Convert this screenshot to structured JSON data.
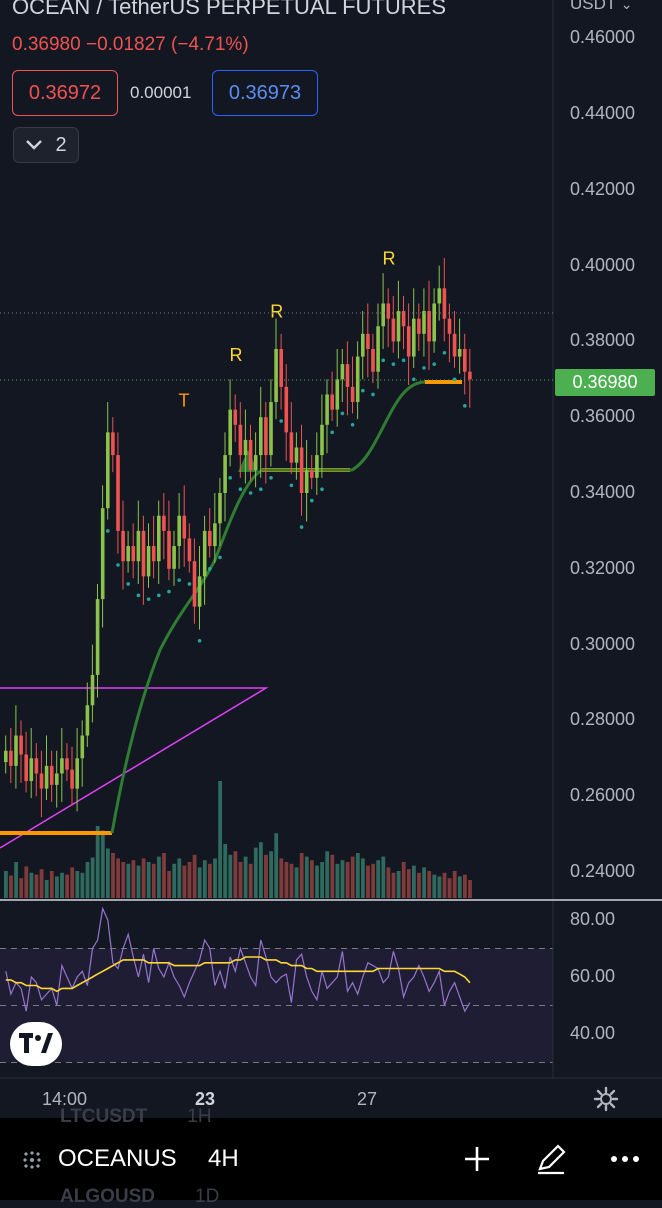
{
  "header": {
    "title": "OCEAN / TetherUS PERPETUAL FUTURES",
    "last_price": "0.36980",
    "change": "−0.01827",
    "change_pct": "(−4.71%)",
    "bid": "0.36972",
    "spread": "0.00001",
    "ask": "0.36973",
    "indicator_count": "2",
    "currency": "USDT"
  },
  "price_axis": {
    "labels": [
      "0.46000",
      "0.44000",
      "0.42000",
      "0.40000",
      "0.38000",
      "0.36000",
      "0.34000",
      "0.32000",
      "0.30000",
      "0.28000",
      "0.26000",
      "0.24000"
    ],
    "current_price_label": "0.36980",
    "current_price": 0.3698
  },
  "rsi_axis": {
    "labels": [
      "80.00",
      "60.00",
      "40.00"
    ]
  },
  "time_axis": {
    "labels": [
      "14:00",
      "23",
      "27"
    ]
  },
  "bottom_bar": {
    "symbol": "OCEANUS",
    "interval": "4H",
    "ghost_above": [
      "LTCUSDT",
      "1H"
    ],
    "ghost_below": [
      "ALGOUSD",
      "1D"
    ]
  },
  "colors": {
    "background": "#131722",
    "up": "#8bc34a",
    "down": "#ef5350",
    "trend": "#2e7d32",
    "triangle": "#e040fb",
    "rsi": "#9575cd",
    "rsi_ma": "#fdd835",
    "base_line": "#ff9800"
  },
  "chart_data": [
    {
      "type": "candlestick",
      "title": "OCEAN / TetherUS PERPETUAL FUTURES",
      "interval": "4H",
      "ylim": [
        0.232,
        0.465
      ],
      "x_tick_labels": [
        "14:00",
        "23",
        "27"
      ],
      "markers": [
        {
          "text": "T",
          "bar": 35,
          "price": 0.3575
        },
        {
          "text": "R",
          "bar": 45,
          "price": 0.3695
        },
        {
          "text": "R",
          "bar": 53,
          "price": 0.381
        },
        {
          "text": "R",
          "bar": 75,
          "price": 0.395
        }
      ],
      "overlays": {
        "trend_line": "green",
        "triangle_pattern": "magenta",
        "support_line": "orange"
      }
    },
    {
      "type": "line",
      "ylim": [
        25,
        90
      ],
      "y_tick_labels": [
        "80.00",
        "60.00",
        "40.00"
      ],
      "series": [
        {
          "name": "",
          "values": [
            62,
            54,
            58,
            56,
            48,
            60,
            58,
            52,
            54,
            56,
            50,
            64,
            60,
            56,
            60,
            62,
            57,
            70,
            73,
            84,
            80,
            65,
            63,
            70,
            75,
            67,
            60,
            68,
            58,
            70,
            63,
            60,
            65,
            60,
            57,
            53,
            58,
            62,
            66,
            73,
            70,
            57,
            62,
            56,
            67,
            62,
            70,
            65,
            60,
            57,
            73,
            67,
            60,
            58,
            60,
            61,
            51,
            66,
            68,
            60,
            55,
            52,
            62,
            56,
            58,
            60,
            69,
            55,
            58,
            54,
            60,
            65,
            64,
            63,
            58,
            60,
            69,
            63,
            53,
            58,
            60,
            64,
            60,
            55,
            58,
            62,
            50,
            55,
            58,
            53,
            48,
            51
          ]
        },
        {
          "name": "",
          "values": [
            59,
            59,
            58,
            58,
            57,
            57,
            57,
            56,
            56,
            56,
            55,
            56,
            56,
            56,
            57,
            58,
            59,
            60,
            61,
            62,
            63,
            64,
            65,
            66,
            66,
            66,
            66,
            66,
            65,
            65,
            65,
            65,
            65,
            64,
            64,
            64,
            64,
            64,
            64,
            65,
            65,
            65,
            65,
            65,
            65,
            66,
            66,
            67,
            67,
            67,
            67,
            66,
            66,
            66,
            65,
            65,
            64,
            64,
            64,
            63,
            63,
            62,
            62,
            62,
            62,
            62,
            62,
            62,
            62,
            62,
            62,
            62,
            62,
            63,
            63,
            63,
            63,
            63,
            63,
            63,
            63,
            63,
            63,
            63,
            63,
            63,
            62,
            62,
            62,
            61,
            60,
            58
          ]
        }
      ]
    }
  ]
}
